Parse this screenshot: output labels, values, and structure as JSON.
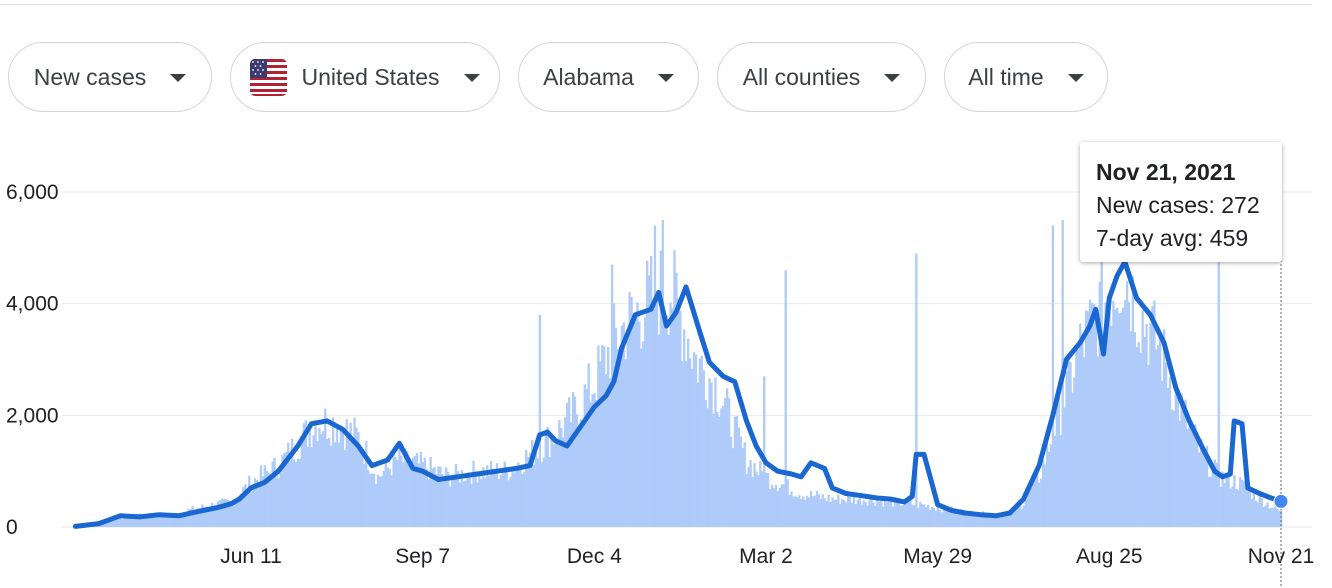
{
  "filters": [
    {
      "label": "New cases"
    },
    {
      "label": "United States",
      "icon": "us-flag-icon"
    },
    {
      "label": "Alabama"
    },
    {
      "label": "All counties"
    },
    {
      "label": "All time"
    }
  ],
  "tooltip": {
    "date": "Nov 21, 2021",
    "cases_text": "New cases: 272",
    "avg_text": "7-day avg: 459"
  },
  "colors": {
    "bars": "#aecbfa",
    "line": "#1a67d2",
    "dot": "#4285f4",
    "grid": "#e8eaed"
  },
  "chart_data": {
    "type": "bar",
    "title": "",
    "xlabel": "",
    "ylabel": "",
    "ylim": [
      0,
      6000
    ],
    "y_ticks": [
      0,
      2000,
      4000,
      6000
    ],
    "y_tick_labels": [
      "0",
      "2,000",
      "4,000",
      "6,000"
    ],
    "x_ticks": [
      "2020-06-11",
      "2020-09-07",
      "2020-12-04",
      "2021-03-02",
      "2021-05-29",
      "2021-08-25",
      "2021-11-21"
    ],
    "x_tick_labels": [
      "Jun 11",
      "Sep 7",
      "Dec 4",
      "Mar 2",
      "May 29",
      "Aug 25",
      "Nov 21"
    ],
    "date_range": [
      "2020-03-13",
      "2021-11-21"
    ],
    "grid": true,
    "series": [
      {
        "name": "New cases",
        "type": "bar",
        "points": [
          [
            "2020-03-13",
            10
          ],
          [
            "2020-04-01",
            150
          ],
          [
            "2020-04-15",
            200
          ],
          [
            "2020-05-01",
            220
          ],
          [
            "2020-05-20",
            380
          ],
          [
            "2020-06-01",
            450
          ],
          [
            "2020-06-11",
            800
          ],
          [
            "2020-06-25",
            1100
          ],
          [
            "2020-07-05",
            1500
          ],
          [
            "2020-07-15",
            1900
          ],
          [
            "2020-07-25",
            1850
          ],
          [
            "2020-08-05",
            1600
          ],
          [
            "2020-08-15",
            900
          ],
          [
            "2020-08-25",
            1200
          ],
          [
            "2020-09-07",
            1100
          ],
          [
            "2020-09-20",
            900
          ],
          [
            "2020-10-05",
            1000
          ],
          [
            "2020-10-20",
            1000
          ],
          [
            "2020-11-05",
            1400
          ],
          [
            "2020-11-15",
            1700
          ],
          [
            "2020-11-25",
            2100
          ],
          [
            "2020-12-04",
            2600
          ],
          [
            "2020-12-15",
            3400
          ],
          [
            "2020-12-25",
            3800
          ],
          [
            "2021-01-05",
            4200
          ],
          [
            "2021-01-12",
            4300
          ],
          [
            "2021-01-25",
            3000
          ],
          [
            "2021-02-05",
            2500
          ],
          [
            "2021-02-20",
            1200
          ],
          [
            "2021-03-02",
            900
          ],
          [
            "2021-03-20",
            600
          ],
          [
            "2021-04-05",
            500
          ],
          [
            "2021-04-20",
            500
          ],
          [
            "2021-05-05",
            450
          ],
          [
            "2021-05-20",
            400
          ],
          [
            "2021-05-29",
            350
          ],
          [
            "2021-06-15",
            250
          ],
          [
            "2021-06-30",
            200
          ],
          [
            "2021-07-10",
            350
          ],
          [
            "2021-07-20",
            900
          ],
          [
            "2021-07-30",
            2000
          ],
          [
            "2021-08-10",
            3200
          ],
          [
            "2021-08-20",
            3900
          ],
          [
            "2021-08-25",
            4200
          ],
          [
            "2021-09-01",
            4600
          ],
          [
            "2021-09-10",
            3800
          ],
          [
            "2021-09-20",
            3200
          ],
          [
            "2021-09-30",
            2200
          ],
          [
            "2021-10-10",
            1400
          ],
          [
            "2021-10-20",
            900
          ],
          [
            "2021-10-30",
            800
          ],
          [
            "2021-11-10",
            500
          ],
          [
            "2021-11-21",
            272
          ]
        ],
        "spikes": [
          [
            "2020-11-06",
            3800
          ],
          [
            "2020-12-13",
            4700
          ],
          [
            "2021-01-04",
            5400
          ],
          [
            "2021-01-08",
            5500
          ],
          [
            "2021-03-01",
            2700
          ],
          [
            "2021-03-12",
            4600
          ],
          [
            "2021-05-18",
            4900
          ],
          [
            "2021-07-27",
            5400
          ],
          [
            "2021-08-01",
            5500
          ],
          [
            "2021-10-20",
            5000
          ]
        ]
      },
      {
        "name": "7-day avg",
        "type": "line",
        "points": [
          [
            "2020-03-13",
            10
          ],
          [
            "2020-03-25",
            60
          ],
          [
            "2020-04-05",
            200
          ],
          [
            "2020-04-15",
            180
          ],
          [
            "2020-04-25",
            220
          ],
          [
            "2020-05-05",
            200
          ],
          [
            "2020-05-15",
            280
          ],
          [
            "2020-05-25",
            350
          ],
          [
            "2020-06-01",
            420
          ],
          [
            "2020-06-05",
            500
          ],
          [
            "2020-06-11",
            700
          ],
          [
            "2020-06-18",
            800
          ],
          [
            "2020-06-25",
            1000
          ],
          [
            "2020-07-05",
            1450
          ],
          [
            "2020-07-12",
            1850
          ],
          [
            "2020-07-20",
            1900
          ],
          [
            "2020-07-28",
            1750
          ],
          [
            "2020-08-05",
            1450
          ],
          [
            "2020-08-12",
            1100
          ],
          [
            "2020-08-20",
            1200
          ],
          [
            "2020-08-26",
            1500
          ],
          [
            "2020-09-02",
            1050
          ],
          [
            "2020-09-07",
            1000
          ],
          [
            "2020-09-15",
            850
          ],
          [
            "2020-09-25",
            900
          ],
          [
            "2020-10-05",
            950
          ],
          [
            "2020-10-15",
            1000
          ],
          [
            "2020-10-25",
            1050
          ],
          [
            "2020-11-01",
            1100
          ],
          [
            "2020-11-06",
            1650
          ],
          [
            "2020-11-10",
            1700
          ],
          [
            "2020-11-14",
            1550
          ],
          [
            "2020-11-20",
            1450
          ],
          [
            "2020-11-27",
            1800
          ],
          [
            "2020-12-04",
            2150
          ],
          [
            "2020-12-10",
            2350
          ],
          [
            "2020-12-14",
            2600
          ],
          [
            "2020-12-18",
            3200
          ],
          [
            "2020-12-25",
            3800
          ],
          [
            "2021-01-02",
            3900
          ],
          [
            "2021-01-06",
            4200
          ],
          [
            "2021-01-10",
            3600
          ],
          [
            "2021-01-15",
            3850
          ],
          [
            "2021-01-20",
            4300
          ],
          [
            "2021-01-27",
            3500
          ],
          [
            "2021-02-01",
            2950
          ],
          [
            "2021-02-08",
            2700
          ],
          [
            "2021-02-14",
            2600
          ],
          [
            "2021-02-20",
            1900
          ],
          [
            "2021-02-25",
            1450
          ],
          [
            "2021-03-02",
            1150
          ],
          [
            "2021-03-08",
            1000
          ],
          [
            "2021-03-15",
            950
          ],
          [
            "2021-03-20",
            900
          ],
          [
            "2021-03-25",
            1150
          ],
          [
            "2021-04-01",
            1050
          ],
          [
            "2021-04-05",
            700
          ],
          [
            "2021-04-12",
            600
          ],
          [
            "2021-04-20",
            560
          ],
          [
            "2021-04-28",
            520
          ],
          [
            "2021-05-05",
            500
          ],
          [
            "2021-05-12",
            450
          ],
          [
            "2021-05-16",
            550
          ],
          [
            "2021-05-18",
            1300
          ],
          [
            "2021-05-22",
            1300
          ],
          [
            "2021-05-29",
            400
          ],
          [
            "2021-06-05",
            300
          ],
          [
            "2021-06-12",
            250
          ],
          [
            "2021-06-20",
            220
          ],
          [
            "2021-06-28",
            200
          ],
          [
            "2021-07-05",
            250
          ],
          [
            "2021-07-12",
            500
          ],
          [
            "2021-07-20",
            1100
          ],
          [
            "2021-07-27",
            2000
          ],
          [
            "2021-08-03",
            3000
          ],
          [
            "2021-08-10",
            3300
          ],
          [
            "2021-08-15",
            3600
          ],
          [
            "2021-08-18",
            3900
          ],
          [
            "2021-08-22",
            3100
          ],
          [
            "2021-08-25",
            4100
          ],
          [
            "2021-08-29",
            4500
          ],
          [
            "2021-09-02",
            4750
          ],
          [
            "2021-09-08",
            4100
          ],
          [
            "2021-09-15",
            3800
          ],
          [
            "2021-09-22",
            3300
          ],
          [
            "2021-09-28",
            2500
          ],
          [
            "2021-10-05",
            1900
          ],
          [
            "2021-10-12",
            1400
          ],
          [
            "2021-10-18",
            1000
          ],
          [
            "2021-10-22",
            900
          ],
          [
            "2021-10-26",
            950
          ],
          [
            "2021-10-28",
            1900
          ],
          [
            "2021-11-01",
            1850
          ],
          [
            "2021-11-04",
            700
          ],
          [
            "2021-11-10",
            600
          ],
          [
            "2021-11-16",
            520
          ],
          [
            "2021-11-21",
            459
          ]
        ]
      }
    ],
    "highlight": {
      "date": "2021-11-21",
      "new_cases": 272,
      "avg": 459
    }
  }
}
